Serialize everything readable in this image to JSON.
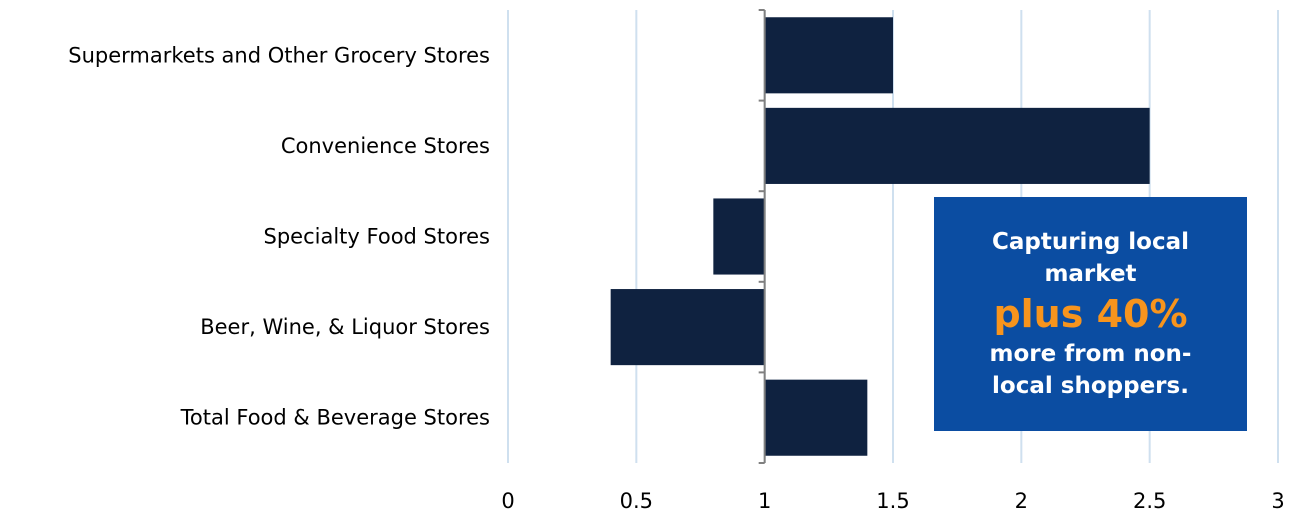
{
  "chart_data": {
    "type": "bar",
    "orientation": "horizontal",
    "baseline": 1,
    "categories": [
      "Supermarkets and Other Grocery Stores",
      "Convenience Stores",
      "Specialty Food Stores",
      "Beer, Wine, & Liquor Stores",
      "Total Food & Beverage Stores"
    ],
    "values": [
      1.5,
      2.5,
      0.8,
      0.4,
      1.4
    ],
    "xlim": [
      0,
      3
    ],
    "xticks": [
      "0",
      "0.5",
      "1",
      "1.5",
      "2",
      "2.5",
      "3"
    ],
    "grid": true,
    "title": "",
    "xlabel": "",
    "ylabel": ""
  },
  "colors": {
    "bar": "#0f2240",
    "grid": "#cfe0ef",
    "axis": "#808080",
    "callout_bg": "#0b4da2",
    "callout_highlight": "#f7941d"
  },
  "callout": {
    "line1": "Capturing local market",
    "highlight": "plus 40%",
    "line2": "more from non-local shoppers."
  }
}
